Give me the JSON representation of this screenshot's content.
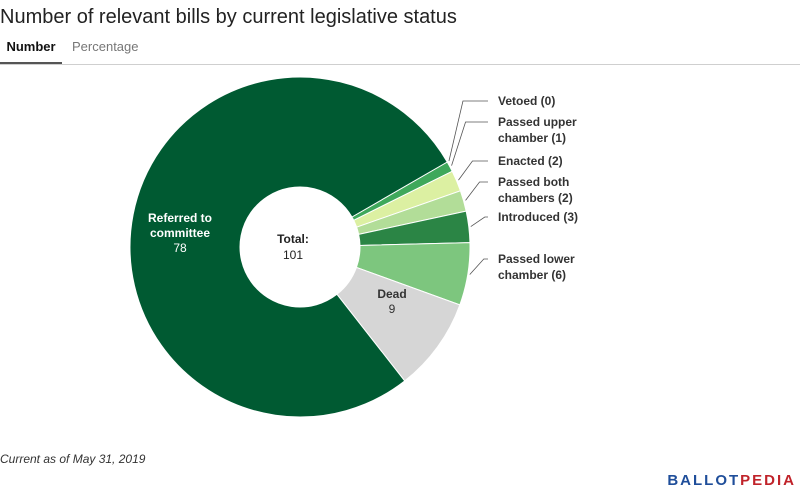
{
  "title": "Number of relevant bills by current legislative status",
  "tabs": [
    "Number",
    "Percentage"
  ],
  "footnote": "Current as of May 31, 2019",
  "logo": {
    "part1": "BALLOT",
    "part2": "PEDIA"
  },
  "colors": {
    "logo_blue": "#1f4e9a",
    "logo_red": "#c0232a"
  },
  "chart_data": {
    "type": "pie",
    "style": "donut",
    "center_label": "Total:",
    "total": 101,
    "slices": [
      {
        "label": "Vetoed (0)",
        "name": "Vetoed",
        "value": 0,
        "color": "#d5e8d0",
        "label_position": "outside"
      },
      {
        "label": "Passed upper chamber (1)",
        "name": "Passed upper chamber",
        "value": 1,
        "color": "#3fa85b",
        "label_position": "outside"
      },
      {
        "label": "Enacted (2)",
        "name": "Enacted",
        "value": 2,
        "color": "#dcf0a2",
        "label_position": "outside"
      },
      {
        "label": "Passed both chambers (2)",
        "name": "Passed both chambers",
        "value": 2,
        "color": "#b2dd98",
        "label_position": "outside"
      },
      {
        "label": "Introduced (3)",
        "name": "Introduced",
        "value": 3,
        "color": "#2b8545",
        "label_position": "outside"
      },
      {
        "label": "Passed lower chamber (6)",
        "name": "Passed lower chamber",
        "value": 6,
        "color": "#7dc67e",
        "label_position": "outside"
      },
      {
        "label": "Dead",
        "name": "Dead",
        "value": 9,
        "color": "#d6d6d6",
        "label_position": "inside"
      },
      {
        "label": "Referred to committee",
        "name": "Referred to committee",
        "value": 78,
        "color": "#005a32",
        "label_position": "inside"
      }
    ]
  }
}
